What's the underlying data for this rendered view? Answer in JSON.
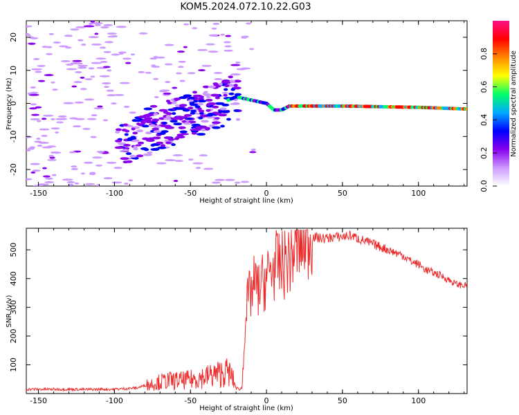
{
  "title": "KOM5.2024.072.10.22.G03",
  "colors": {
    "snr_line": "#ee2a2a",
    "frame": "#000000",
    "colormap": [
      "#ffffff",
      "#cc99ff",
      "#8800ee",
      "#0000ff",
      "#00aaff",
      "#00ff66",
      "#ffff00",
      "#ff8800",
      "#ff0000",
      "#ff1188"
    ]
  },
  "chart_data": [
    {
      "type": "heatmap",
      "xlabel": "Height of straight line (km)",
      "ylabel": "Frequency (Hz)",
      "xlim": [
        -158,
        132
      ],
      "ylim": [
        -25,
        25
      ],
      "x_ticks": [
        -150,
        -100,
        -50,
        0,
        50,
        100
      ],
      "y_ticks": [
        -20,
        -10,
        0,
        10,
        20
      ],
      "grid": false,
      "ridge": {
        "description_points": [
          [
            -25,
            1
          ],
          [
            -20,
            2
          ],
          [
            -10,
            1
          ],
          [
            0,
            0
          ],
          [
            5,
            -2
          ],
          [
            10,
            -2
          ],
          [
            15,
            -0.8
          ],
          [
            50,
            -0.8
          ],
          [
            100,
            -1.2
          ],
          [
            132,
            -1.7
          ]
        ]
      },
      "colorbar": {
        "label": "Normalized spectral amplitude",
        "ticks": [
          0.0,
          0.2,
          0.4,
          0.6,
          0.8
        ],
        "range": [
          0,
          1
        ]
      }
    },
    {
      "type": "line",
      "xlabel": "Height of straight line (km)",
      "ylabel": "SNR (v/v)",
      "xlim": [
        -158,
        132
      ],
      "ylim": [
        0,
        575
      ],
      "x_ticks": [
        -150,
        -100,
        -50,
        0,
        50,
        100
      ],
      "y_ticks": [
        100,
        200,
        300,
        400,
        500
      ],
      "grid": false,
      "series": [
        {
          "x": [
            -158,
            -150,
            -140,
            -130,
            -120,
            -110,
            -100,
            -90,
            -85,
            -80,
            -75,
            -70,
            -65,
            -60,
            -55,
            -50,
            -45,
            -40,
            -35,
            -30,
            -25,
            -22,
            -20,
            -18,
            -16,
            -14,
            -12,
            -10,
            -8,
            -5,
            -2,
            0,
            2,
            5,
            8,
            10,
            15,
            20,
            25,
            30,
            35,
            40,
            45,
            50,
            55,
            60,
            65,
            70,
            75,
            80,
            85,
            90,
            95,
            100,
            105,
            110,
            115,
            120,
            125,
            132
          ],
          "values": [
            15,
            15,
            15,
            15,
            14,
            15,
            15,
            18,
            20,
            28,
            35,
            40,
            45,
            45,
            45,
            48,
            55,
            58,
            65,
            70,
            75,
            50,
            20,
            15,
            20,
            260,
            330,
            350,
            380,
            360,
            390,
            400,
            420,
            440,
            450,
            440,
            470,
            510,
            540,
            545,
            540,
            540,
            545,
            545,
            550,
            540,
            530,
            520,
            510,
            500,
            490,
            480,
            460,
            450,
            430,
            420,
            410,
            395,
            380,
            375
          ]
        }
      ]
    }
  ]
}
